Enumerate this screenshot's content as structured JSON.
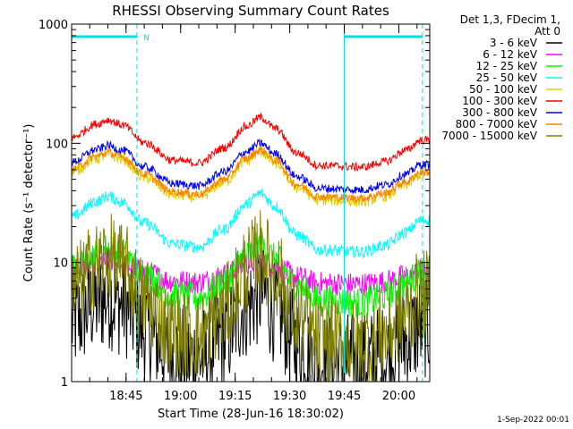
{
  "chart_data": {
    "type": "line",
    "title": "RHESSI Observing Summary Count Rates",
    "xlabel": "Start Time (28-Jun-16 18:30:02)",
    "ylabel": "Count Rate (s⁻¹ detector⁻¹)",
    "yscale": "log",
    "ylim": [
      1,
      1000
    ],
    "xlim": [
      "18:30:02",
      "20:08:30"
    ],
    "x_ticks": [
      "18:45",
      "19:00",
      "19:15",
      "19:30",
      "19:45",
      "20:00"
    ],
    "y_ticks": [
      "1",
      "10",
      "100",
      "1000"
    ],
    "legend_header": [
      "Det 1,3, FDecim 1,",
      "Att 0"
    ],
    "legend_position": "right",
    "grid": false,
    "annotations": [
      {
        "text": "N",
        "x": "18:48"
      }
    ],
    "boundaries": {
      "solid_lines": [
        "18:30:02",
        "19:45"
      ],
      "dashed_lines": [
        "18:48",
        "20:06:30"
      ],
      "night_bars": [
        [
          "18:30:02",
          "18:48"
        ],
        [
          "19:45",
          "20:06:30"
        ]
      ]
    },
    "profile_points": [
      {
        "t": "18:30",
        "f": 0.6
      },
      {
        "t": "18:37",
        "f": 0.87
      },
      {
        "t": "18:40",
        "f": 0.95
      },
      {
        "t": "18:44",
        "f": 0.85
      },
      {
        "t": "18:50",
        "f": 0.5
      },
      {
        "t": "18:58",
        "f": 0.15
      },
      {
        "t": "19:05",
        "f": 0.1
      },
      {
        "t": "19:12",
        "f": 0.4
      },
      {
        "t": "19:18",
        "f": 0.82
      },
      {
        "t": "19:22",
        "f": 1.0
      },
      {
        "t": "19:26",
        "f": 0.78
      },
      {
        "t": "19:32",
        "f": 0.3
      },
      {
        "t": "19:38",
        "f": 0.05
      },
      {
        "t": "19:50",
        "f": 0.02
      },
      {
        "t": "19:56",
        "f": 0.12
      },
      {
        "t": "20:02",
        "f": 0.35
      },
      {
        "t": "20:06",
        "f": 0.55
      }
    ],
    "series": [
      {
        "name": "3 - 6 keV",
        "color": "#000000",
        "base": 1.35,
        "peak": 5.5,
        "noise": 0.45
      },
      {
        "name": "6 - 12 keV",
        "color": "#ff00ff",
        "base": 6.5,
        "peak": 10.5,
        "noise": 0.1
      },
      {
        "name": "12 - 25 keV",
        "color": "#00ff00",
        "base": 4.5,
        "peak": 14,
        "noise": 0.13
      },
      {
        "name": "25 - 50 keV",
        "color": "#00ffff",
        "base": 12,
        "peak": 38,
        "noise": 0.05
      },
      {
        "name": "50 - 100 keV",
        "color": "#e0d000",
        "base": 32,
        "peak": 85,
        "noise": 0.05
      },
      {
        "name": "100 - 300 keV",
        "color": "#ff0000",
        "base": 62,
        "peak": 165,
        "noise": 0.035
      },
      {
        "name": "300 - 800 keV",
        "color": "#0000ff",
        "base": 40,
        "peak": 100,
        "noise": 0.035
      },
      {
        "name": "800 - 7000 keV",
        "color": "#ff8000",
        "base": 34,
        "peak": 88,
        "noise": 0.035
      },
      {
        "name": "7000 - 15000 keV",
        "color": "#808000",
        "base": 2.0,
        "peak": 12,
        "noise": 0.38
      }
    ],
    "footer_date": "1-Sep-2022 00:01"
  }
}
